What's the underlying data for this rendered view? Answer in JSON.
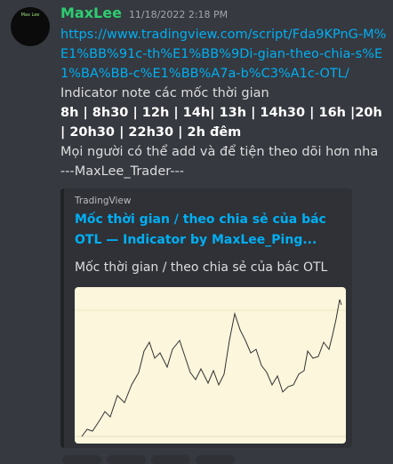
{
  "avatar": {
    "label": "Max Lee"
  },
  "message": {
    "author": "MaxLee",
    "timestamp": "11/18/2022 2:18 PM",
    "link": "https://www.tradingview.com/script/Fda9KPnG-M%E1%BB%91c-th%E1%BB%9Di-gian-theo-chia-s%E1%BA%BB-c%E1%BB%A7a-b%C3%A1c-OTL/",
    "note": "Indicator note các mốc thời gian",
    "times": "8h | 8h30 | 12h | 14h| 13h | 14h30 | 16h |20h | 20h30 | 22h30 | 2h đêm",
    "line1": "Mọi người có thể add và để tiện theo dõi hơn nha",
    "signature": "---MaxLee_Trader---"
  },
  "embed": {
    "provider": "TradingView",
    "title": "Mốc thời gian / theo chia sẻ của bác OTL — Indicator by MaxLee_Ping...",
    "description": "Mốc thời gian / theo chia sẻ của bác OTL"
  }
}
